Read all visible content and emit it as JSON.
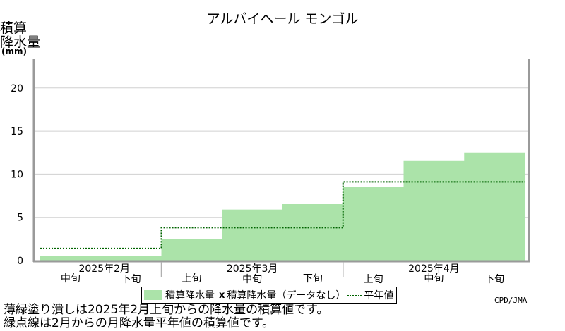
{
  "chart_data": {
    "type": "area",
    "title": "アルバイヘール モンゴル",
    "ylabel_lines": [
      "積算",
      "降水量"
    ],
    "yunit": "(mm)",
    "ylim": [
      0,
      23
    ],
    "yticks": [
      0,
      5,
      10,
      15,
      20
    ],
    "periods": [
      {
        "month": "2025年2月",
        "dekad": "中旬"
      },
      {
        "month": "2025年2月",
        "dekad": "下旬"
      },
      {
        "month": "2025年3月",
        "dekad": "上旬"
      },
      {
        "month": "2025年3月",
        "dekad": "中旬"
      },
      {
        "month": "2025年3月",
        "dekad": "下旬"
      },
      {
        "month": "2025年4月",
        "dekad": "上旬"
      },
      {
        "month": "2025年4月",
        "dekad": "中旬"
      },
      {
        "month": "2025年4月",
        "dekad": "下旬"
      }
    ],
    "x_top_labels": [
      "2025年2月",
      "2025年3月",
      "2025年4月"
    ],
    "x_bottom_labels": [
      "中旬",
      "下旬",
      "上旬",
      "中旬",
      "下旬",
      "上旬",
      "中旬",
      "下旬"
    ],
    "series": [
      {
        "name": "積算降水量",
        "values": [
          0.5,
          0.5,
          2.5,
          5.9,
          6.6,
          8.5,
          11.6,
          12.5
        ],
        "color": "#abe3a9"
      },
      {
        "name": "平年値",
        "values": [
          1.4,
          1.4,
          3.8,
          3.8,
          3.8,
          9.1,
          9.1,
          9.1
        ],
        "color": "#006400"
      }
    ],
    "grid": true
  },
  "legend": {
    "item1": "積算降水量",
    "xmark": "x",
    "item2": "積算降水量（データなし）",
    "item3": "平年値"
  },
  "credit": "CPD/JMA",
  "notes": [
    "薄緑塗り潰しは2025年2月上旬からの降水量の積算値です。",
    "緑点線は2月からの月降水量平年値の積算値です。"
  ]
}
